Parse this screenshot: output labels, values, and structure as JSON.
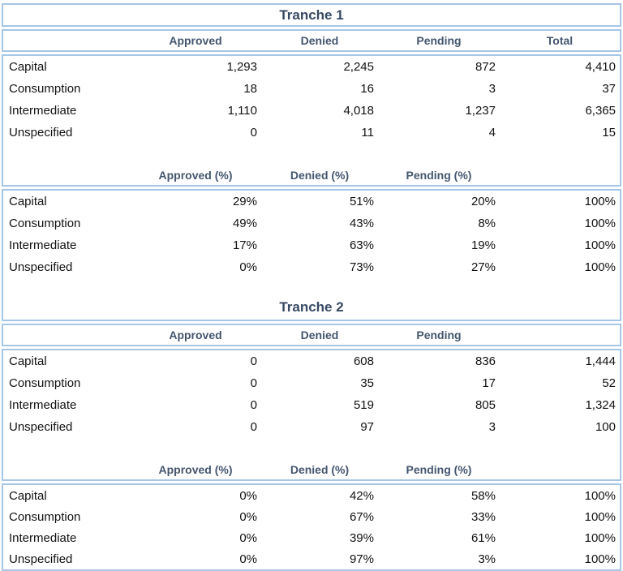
{
  "colors": {
    "border": "#A6C6E6",
    "header_text": "#44566E",
    "title_text": "#364962",
    "body_text": "#121212"
  },
  "tranches": [
    {
      "title": "Tranche 1",
      "count_headers": [
        "Approved",
        "Denied",
        "Pending",
        "Total"
      ],
      "count_rows": [
        {
          "label": "Capital",
          "approved": "1,293",
          "denied": "2,245",
          "pending": "872",
          "total": "4,410"
        },
        {
          "label": "Consumption",
          "approved": "18",
          "denied": "16",
          "pending": "3",
          "total": "37"
        },
        {
          "label": "Intermediate",
          "approved": "1,110",
          "denied": "4,018",
          "pending": "1,237",
          "total": "6,365"
        },
        {
          "label": "Unspecified",
          "approved": "0",
          "denied": "11",
          "pending": "4",
          "total": "15"
        }
      ],
      "pct_headers": [
        "Approved (%)",
        "Denied (%)",
        "Pending (%)"
      ],
      "pct_rows": [
        {
          "label": "Capital",
          "approved": "29%",
          "denied": "51%",
          "pending": "20%",
          "total": "100%"
        },
        {
          "label": "Consumption",
          "approved": "49%",
          "denied": "43%",
          "pending": "8%",
          "total": "100%"
        },
        {
          "label": "Intermediate",
          "approved": "17%",
          "denied": "63%",
          "pending": "19%",
          "total": "100%"
        },
        {
          "label": "Unspecified",
          "approved": "0%",
          "denied": "73%",
          "pending": "27%",
          "total": "100%"
        }
      ]
    },
    {
      "title": "Tranche 2",
      "count_headers": [
        "Approved",
        "Denied",
        "Pending",
        ""
      ],
      "count_rows": [
        {
          "label": "Capital",
          "approved": "0",
          "denied": "608",
          "pending": "836",
          "total": "1,444"
        },
        {
          "label": "Consumption",
          "approved": "0",
          "denied": "35",
          "pending": "17",
          "total": "52"
        },
        {
          "label": "Intermediate",
          "approved": "0",
          "denied": "519",
          "pending": "805",
          "total": "1,324"
        },
        {
          "label": "Unspecified",
          "approved": "0",
          "denied": "97",
          "pending": "3",
          "total": "100"
        }
      ],
      "pct_headers": [
        "Approved (%)",
        "Denied (%)",
        "Pending (%)"
      ],
      "pct_rows": [
        {
          "label": "Capital",
          "approved": "0%",
          "denied": "42%",
          "pending": "58%",
          "total": "100%"
        },
        {
          "label": "Consumption",
          "approved": "0%",
          "denied": "67%",
          "pending": "33%",
          "total": "100%"
        },
        {
          "label": "Intermediate",
          "approved": "0%",
          "denied": "39%",
          "pending": "61%",
          "total": "100%"
        },
        {
          "label": "Unspecified",
          "approved": "0%",
          "denied": "97%",
          "pending": "3%",
          "total": "100%"
        }
      ]
    }
  ]
}
